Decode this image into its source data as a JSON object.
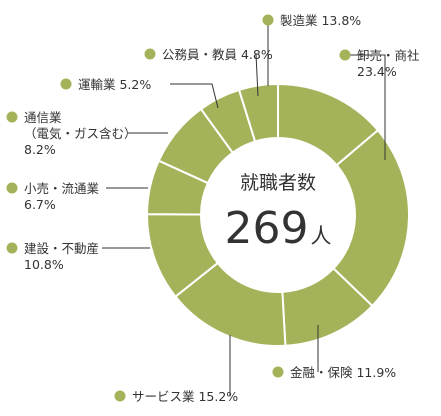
{
  "chart_data": {
    "type": "pie",
    "variant": "donut",
    "center": {
      "title": "就職者数",
      "value": "269",
      "unit": "人"
    },
    "colors": {
      "slice": "#a4b35a",
      "divider": "#ffffff",
      "dot": "#a4b35a",
      "leader": "#333333"
    },
    "slices": [
      {
        "label_lines": [
          "製造業 13.8%"
        ],
        "value": 13.8
      },
      {
        "label_lines": [
          "卸売・商社",
          "23.4%"
        ],
        "value": 23.4
      },
      {
        "label_lines": [
          "金融・保険 11.9%"
        ],
        "value": 11.9
      },
      {
        "label_lines": [
          "サービス業 15.2%"
        ],
        "value": 15.2
      },
      {
        "label_lines": [
          "建設・不動産",
          "10.8%"
        ],
        "value": 10.8
      },
      {
        "label_lines": [
          "小売・流通業",
          "6.7%"
        ],
        "value": 6.7
      },
      {
        "label_lines": [
          "通信業",
          "（電気・ガス含む）",
          "8.2%"
        ],
        "value": 8.2
      },
      {
        "label_lines": [
          "運輸業 5.2%"
        ],
        "value": 5.2
      },
      {
        "label_lines": [
          "公務員・教員 4.8%"
        ],
        "value": 4.8
      }
    ]
  }
}
